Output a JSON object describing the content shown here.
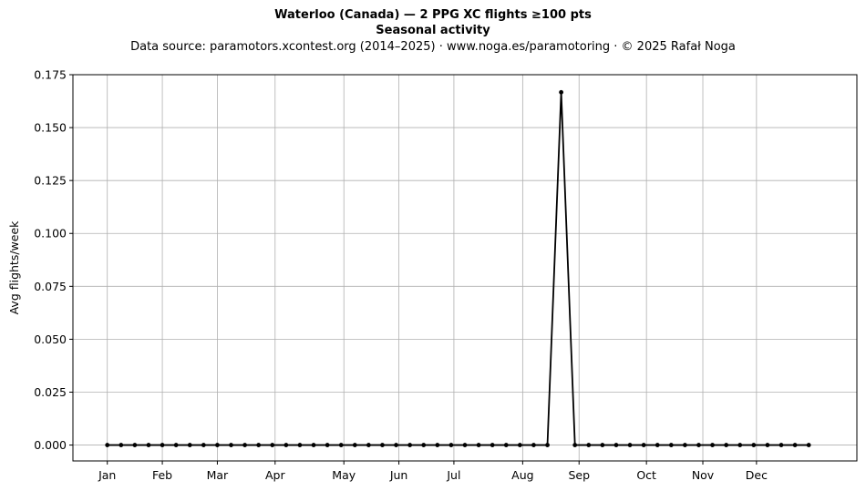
{
  "chart_data": {
    "type": "line",
    "title": "Waterloo (Canada)  —  2 PPG XC flights ≥100 pts",
    "title_line2": "Seasonal activity",
    "subtitle": "Data source: paramotors.xcontest.org (2014–2025)  ·  www.noga.es/paramotoring  ·  © 2025 Rafał Noga",
    "xlabel": "",
    "ylabel": "Avg flights/week",
    "ylim": [
      -0.0075,
      0.175
    ],
    "xlim": [
      -2.5,
      54.5
    ],
    "yticks": [
      0.0,
      0.025,
      0.05,
      0.075,
      0.1,
      0.125,
      0.15,
      0.175
    ],
    "ytick_labels": [
      "0.000",
      "0.025",
      "0.050",
      "0.075",
      "0.100",
      "0.125",
      "0.150",
      "0.175"
    ],
    "xticks": [
      {
        "label": "Jan",
        "week": 0
      },
      {
        "label": "Feb",
        "week": 4
      },
      {
        "label": "Mar",
        "week": 8
      },
      {
        "label": "Apr",
        "week": 12.2
      },
      {
        "label": "May",
        "week": 17.2
      },
      {
        "label": "Jun",
        "week": 21.2
      },
      {
        "label": "Jul",
        "week": 25.2
      },
      {
        "label": "Aug",
        "week": 30.2
      },
      {
        "label": "Sep",
        "week": 34.3
      },
      {
        "label": "Oct",
        "week": 39.2
      },
      {
        "label": "Nov",
        "week": 43.3
      },
      {
        "label": "Dec",
        "week": 47.2
      }
    ],
    "grid": true,
    "series": [
      {
        "color": "#000000",
        "x": [
          0,
          1,
          2,
          3,
          4,
          5,
          6,
          7,
          8,
          9,
          10,
          11,
          12,
          13,
          14,
          15,
          16,
          17,
          18,
          19,
          20,
          21,
          22,
          23,
          24,
          25,
          26,
          27,
          28,
          29,
          30,
          31,
          32,
          33,
          34,
          35,
          36,
          37,
          38,
          39,
          40,
          41,
          42,
          43,
          44,
          45,
          46,
          47,
          48,
          49,
          50,
          51
        ],
        "values": [
          0,
          0,
          0,
          0,
          0,
          0,
          0,
          0,
          0,
          0,
          0,
          0,
          0,
          0,
          0,
          0,
          0,
          0,
          0,
          0,
          0,
          0,
          0,
          0,
          0,
          0,
          0,
          0,
          0,
          0,
          0,
          0,
          0,
          0.1667,
          0,
          0,
          0,
          0,
          0,
          0,
          0,
          0,
          0,
          0,
          0,
          0,
          0,
          0,
          0,
          0,
          0,
          0
        ]
      }
    ]
  }
}
